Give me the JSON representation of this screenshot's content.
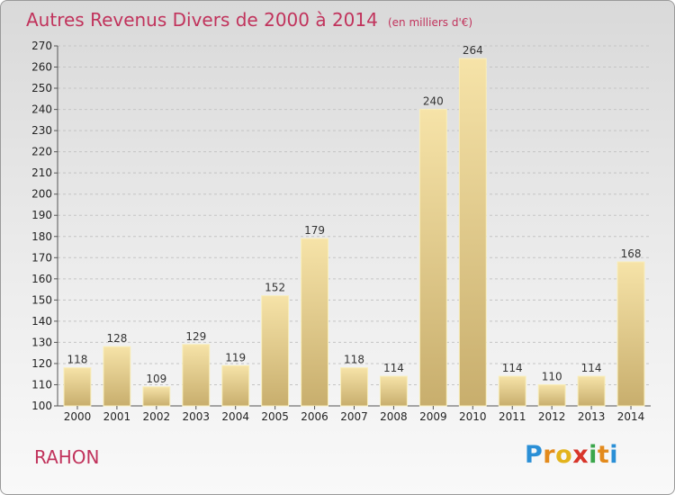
{
  "title": "Autres Revenus Divers de 2000 à 2014",
  "subtitle": "(en milliers d'€)",
  "commune": "RAHON",
  "logo": {
    "letters": [
      {
        "ch": "P",
        "color": "#2a8fd6"
      },
      {
        "ch": "r",
        "color": "#e38a1c"
      },
      {
        "ch": "o",
        "color": "#e3b31c"
      },
      {
        "ch": "x",
        "color": "#d8352a"
      },
      {
        "ch": "i",
        "color": "#3aa64b"
      },
      {
        "ch": "t",
        "color": "#e38a1c"
      },
      {
        "ch": "i",
        "color": "#2a8fd6"
      }
    ]
  },
  "colors": {
    "title": "#c1335c",
    "bar_light": "#f6e3a8",
    "bar_dark": "#c8ae6d",
    "grid": "#c4c4c4"
  },
  "chart_data": {
    "type": "bar",
    "title": "Autres Revenus Divers de 2000 à 2014",
    "subtitle": "(en milliers d'€)",
    "categories": [
      "2000",
      "2001",
      "2002",
      "2003",
      "2004",
      "2005",
      "2006",
      "2007",
      "2008",
      "2009",
      "2010",
      "2011",
      "2012",
      "2013",
      "2014"
    ],
    "values": [
      118,
      128,
      109,
      129,
      119,
      152,
      179,
      118,
      114,
      240,
      264,
      114,
      110,
      114,
      168
    ],
    "ylim": [
      100,
      270
    ],
    "ytick_step": 10,
    "grid": "horizontal dashed",
    "xlabel": "",
    "ylabel": ""
  }
}
